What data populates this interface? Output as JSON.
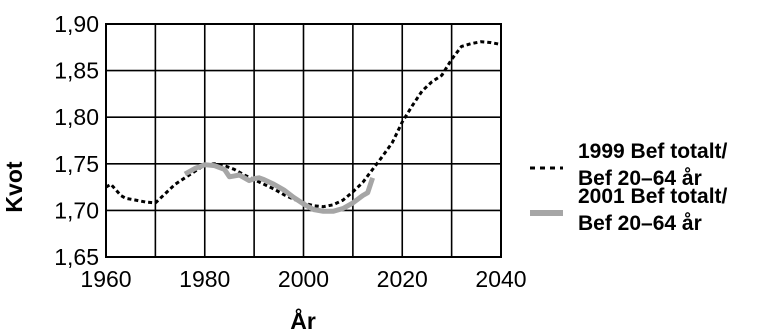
{
  "chart_data": {
    "type": "line",
    "title": "",
    "xlabel": "År",
    "ylabel": "Kvot",
    "xlim": [
      1960,
      2040
    ],
    "ylim": [
      1.65,
      1.9
    ],
    "x_ticks": [
      1960,
      1980,
      2000,
      2020,
      2040
    ],
    "x_tick_labels": [
      "1960",
      "1980",
      "2000",
      "2020",
      "2040"
    ],
    "y_ticks": [
      1.65,
      1.7,
      1.75,
      1.8,
      1.85,
      1.9
    ],
    "y_tick_labels": [
      "1,65",
      "1,70",
      "1,75",
      "1,80",
      "1,85",
      "1,90"
    ],
    "grid": true,
    "legend_position": "right",
    "series": [
      {
        "name": "1999 Bef totalt/ Bef 20–64 år",
        "name_lines": [
          "1999 Bef totalt/",
          "Bef 20–64 år"
        ],
        "style": "dotted",
        "color": "#000000",
        "points": [
          [
            1960,
            1.725
          ],
          [
            1961,
            1.728
          ],
          [
            1962,
            1.722
          ],
          [
            1963,
            1.716
          ],
          [
            1964,
            1.713
          ],
          [
            1966,
            1.711
          ],
          [
            1968,
            1.709
          ],
          [
            1970,
            1.708
          ],
          [
            1972,
            1.718
          ],
          [
            1974,
            1.728
          ],
          [
            1976,
            1.735
          ],
          [
            1978,
            1.742
          ],
          [
            1980,
            1.749
          ],
          [
            1982,
            1.75
          ],
          [
            1984,
            1.748
          ],
          [
            1986,
            1.744
          ],
          [
            1988,
            1.738
          ],
          [
            1990,
            1.733
          ],
          [
            1992,
            1.728
          ],
          [
            1994,
            1.723
          ],
          [
            1996,
            1.717
          ],
          [
            1998,
            1.712
          ],
          [
            2000,
            1.708
          ],
          [
            2002,
            1.705
          ],
          [
            2004,
            1.704
          ],
          [
            2006,
            1.706
          ],
          [
            2008,
            1.711
          ],
          [
            2010,
            1.72
          ],
          [
            2012,
            1.73
          ],
          [
            2014,
            1.744
          ],
          [
            2016,
            1.758
          ],
          [
            2018,
            1.773
          ],
          [
            2020,
            1.795
          ],
          [
            2022,
            1.812
          ],
          [
            2024,
            1.828
          ],
          [
            2026,
            1.838
          ],
          [
            2028,
            1.845
          ],
          [
            2030,
            1.862
          ],
          [
            2032,
            1.876
          ],
          [
            2034,
            1.879
          ],
          [
            2036,
            1.881
          ],
          [
            2038,
            1.88
          ],
          [
            2040,
            1.878
          ]
        ]
      },
      {
        "name": "2001 Bef totalt/ Bef 20–64 år",
        "name_lines": [
          "2001 Bef totalt/",
          "Bef 20–64 år"
        ],
        "style": "solid",
        "color": "#a6a6a6",
        "points": [
          [
            1976,
            1.739
          ],
          [
            1978,
            1.745
          ],
          [
            1980,
            1.749
          ],
          [
            1982,
            1.748
          ],
          [
            1984,
            1.744
          ],
          [
            1985,
            1.736
          ],
          [
            1986,
            1.737
          ],
          [
            1987,
            1.738
          ],
          [
            1988,
            1.735
          ],
          [
            1989,
            1.732
          ],
          [
            1990,
            1.734
          ],
          [
            1991,
            1.735
          ],
          [
            1992,
            1.733
          ],
          [
            1994,
            1.728
          ],
          [
            1996,
            1.722
          ],
          [
            1998,
            1.714
          ],
          [
            2000,
            1.707
          ],
          [
            2002,
            1.701
          ],
          [
            2004,
            1.699
          ],
          [
            2006,
            1.699
          ],
          [
            2008,
            1.702
          ],
          [
            2010,
            1.708
          ],
          [
            2012,
            1.716
          ],
          [
            2013,
            1.719
          ],
          [
            2014,
            1.735
          ]
        ]
      }
    ]
  }
}
